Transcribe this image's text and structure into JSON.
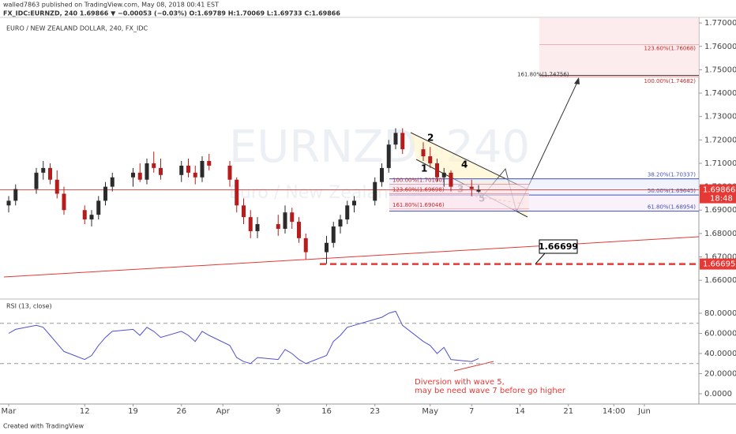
{
  "header": {
    "publisher": "walled7863 published on TradingView.com, May 08, 2018 00:41 EST",
    "symbol_line": "FX_IDC:EURNZD, 240  1.69866 ▼ −0.00053 (−0.03%)  O:1.69789  H:1.70069  L:1.69733  C:1.69866"
  },
  "footer": "Created with TradingView",
  "chart_data": [
    {
      "type": "candlestick",
      "title": "EURO / NEW ZEALAND DOLLAR, 240, FX_IDC",
      "watermark": "EURNZD, 240",
      "watermark_sub": "Euro / New Zealand Dollar",
      "up_color": "#2b2b2b",
      "down_color": "#b71c1c",
      "x": [
        0,
        1,
        4,
        5,
        6,
        7,
        8,
        11,
        12,
        13,
        14,
        15,
        18,
        19,
        20,
        21,
        22,
        25,
        26,
        27,
        28,
        29,
        32,
        33,
        34,
        35,
        36,
        39,
        40,
        41,
        42,
        43,
        46,
        47,
        48,
        49,
        50,
        53,
        54,
        55,
        56,
        57,
        60,
        61,
        62,
        63,
        64,
        67,
        68
      ],
      "open": [
        1.692,
        1.694,
        1.699,
        1.706,
        1.708,
        1.703,
        1.697,
        1.69,
        1.686,
        1.688,
        1.694,
        1.7,
        1.704,
        1.706,
        1.703,
        1.71,
        1.708,
        1.705,
        1.709,
        1.706,
        1.704,
        1.711,
        1.709,
        1.703,
        1.692,
        1.687,
        1.681,
        1.684,
        1.682,
        1.689,
        1.685,
        1.678,
        1.672,
        1.676,
        1.683,
        1.686,
        1.692,
        1.694,
        1.702,
        1.708,
        1.718,
        1.723,
        1.716,
        1.713,
        1.71,
        1.704,
        1.706,
        1.7,
        1.69789
      ],
      "high": [
        1.696,
        1.701,
        1.708,
        1.711,
        1.71,
        1.707,
        1.7,
        1.692,
        1.69,
        1.696,
        1.702,
        1.706,
        1.708,
        1.71,
        1.712,
        1.715,
        1.712,
        1.711,
        1.712,
        1.709,
        1.713,
        1.714,
        1.711,
        1.704,
        1.695,
        1.69,
        1.687,
        1.688,
        1.692,
        1.691,
        1.687,
        1.68,
        1.679,
        1.685,
        1.688,
        1.694,
        1.696,
        1.704,
        1.71,
        1.72,
        1.725,
        1.725,
        1.719,
        1.717,
        1.712,
        1.708,
        1.707,
        1.703,
        1.70069
      ],
      "low": [
        1.689,
        1.692,
        1.697,
        1.703,
        1.701,
        1.695,
        1.688,
        1.684,
        1.683,
        1.686,
        1.692,
        1.698,
        1.7,
        1.702,
        1.701,
        1.706,
        1.703,
        1.702,
        1.704,
        1.701,
        1.702,
        1.707,
        1.7,
        1.689,
        1.684,
        1.678,
        1.678,
        1.679,
        1.68,
        1.682,
        1.676,
        1.669,
        1.667,
        1.674,
        1.68,
        1.684,
        1.689,
        1.692,
        1.7,
        1.706,
        1.716,
        1.714,
        1.711,
        1.708,
        1.702,
        1.7,
        1.698,
        1.696,
        1.69733
      ],
      "close": [
        1.694,
        1.699,
        1.706,
        1.708,
        1.703,
        1.697,
        1.69,
        1.686,
        1.688,
        1.694,
        1.7,
        1.704,
        1.706,
        1.703,
        1.71,
        1.708,
        1.705,
        1.709,
        1.706,
        1.704,
        1.711,
        1.709,
        1.703,
        1.692,
        1.687,
        1.681,
        1.684,
        1.682,
        1.689,
        1.685,
        1.678,
        1.672,
        1.676,
        1.683,
        1.686,
        1.692,
        1.694,
        1.702,
        1.708,
        1.718,
        1.723,
        1.716,
        1.713,
        1.71,
        1.704,
        1.706,
        1.7,
        1.699,
        1.69866
      ],
      "xlim": [
        -1.257,
        99.886
      ],
      "ylim": [
        1.6523,
        1.7724
      ],
      "yticks": [
        {
          "value": 1.66,
          "label": "1.66000"
        },
        {
          "value": 1.67,
          "label": "1.67000"
        },
        {
          "value": 1.68,
          "label": "1.68000"
        },
        {
          "value": 1.69,
          "label": "1.69000"
        },
        {
          "value": 1.7,
          "label": "1.70000"
        },
        {
          "value": 1.71,
          "label": "1.71000"
        },
        {
          "value": 1.72,
          "label": "1.72000"
        },
        {
          "value": 1.73,
          "label": "1.73000"
        },
        {
          "value": 1.74,
          "label": "1.74000"
        },
        {
          "value": 1.75,
          "label": "1.75000"
        },
        {
          "value": 1.76,
          "label": "1.76000"
        },
        {
          "value": 1.77,
          "label": "1.77000"
        }
      ],
      "last_price": 1.69866,
      "countdown": "18:48",
      "support": 1.66695,
      "callout": 1.66699,
      "fib_right": [
        {
          "label": "38.20%(1.70337)",
          "value": 1.70337
        },
        {
          "label": "50.00%(1.69645)",
          "value": 1.69645
        },
        {
          "label": "61.80%(1.68954)",
          "value": 1.68954
        }
      ],
      "fib_left": [
        {
          "label": "100.00%(1.70100)",
          "value": 1.701
        },
        {
          "label": "123.60%(1.69698)",
          "value": 1.69698
        },
        {
          "label": "161.80%(1.69046)",
          "value": 1.69046
        }
      ],
      "fib_upper": [
        {
          "label": "161.80%(1.74756)",
          "value": 1.74756
        },
        {
          "label": "100.00%(1.74682)",
          "value": 1.74682
        },
        {
          "label": "123.60%(1.76068)",
          "value": 1.76068
        }
      ],
      "wave_labels": [
        "1",
        "2",
        "3",
        "4",
        "5"
      ]
    },
    {
      "type": "line",
      "title": "RSI (13, close)",
      "color": "#5050d0",
      "x": [
        0,
        1,
        4,
        5,
        6,
        7,
        8,
        11,
        12,
        13,
        14,
        15,
        18,
        19,
        20,
        21,
        22,
        25,
        26,
        27,
        28,
        29,
        32,
        33,
        34,
        35,
        36,
        39,
        40,
        41,
        42,
        43,
        46,
        47,
        48,
        49,
        50,
        53,
        54,
        55,
        56,
        57,
        60,
        61,
        62,
        63,
        64,
        67,
        68
      ],
      "values": [
        60,
        64,
        68,
        66,
        58,
        50,
        42,
        34,
        38,
        48,
        56,
        62,
        64,
        58,
        66,
        62,
        56,
        62,
        58,
        52,
        62,
        58,
        48,
        36,
        32,
        30,
        36,
        34,
        44,
        40,
        34,
        30,
        38,
        52,
        58,
        66,
        68,
        74,
        76,
        80,
        82,
        68,
        52,
        48,
        40,
        46,
        34,
        32,
        35
      ],
      "bands": [
        30,
        70
      ],
      "xlim": [
        -1.257,
        99.886
      ],
      "ylim": [
        -10.2,
        93.3
      ],
      "yticks": [
        {
          "value": 0,
          "label": "0.0000"
        },
        {
          "value": 20,
          "label": "20.0000"
        },
        {
          "value": 40,
          "label": "40.0000"
        },
        {
          "value": 60,
          "label": "60.0000"
        },
        {
          "value": 80,
          "label": "80.0000"
        }
      ],
      "xticks": [
        {
          "value": 0,
          "label": "Mar"
        },
        {
          "value": 11,
          "label": "12"
        },
        {
          "value": 18,
          "label": "19"
        },
        {
          "value": 25,
          "label": "26"
        },
        {
          "value": 31,
          "label": "Apr"
        },
        {
          "value": 39,
          "label": "9"
        },
        {
          "value": 46,
          "label": "16"
        },
        {
          "value": 53,
          "label": "23"
        },
        {
          "value": 61,
          "label": "May"
        },
        {
          "value": 67,
          "label": "7"
        },
        {
          "value": 74,
          "label": "14"
        },
        {
          "value": 81,
          "label": "21"
        },
        {
          "value": 87.58,
          "label": "14:00"
        },
        {
          "value": 92,
          "label": "Jun"
        }
      ],
      "annotation": [
        "Diversion with wave 5,",
        "may be need wave 7 before go higher"
      ]
    }
  ]
}
